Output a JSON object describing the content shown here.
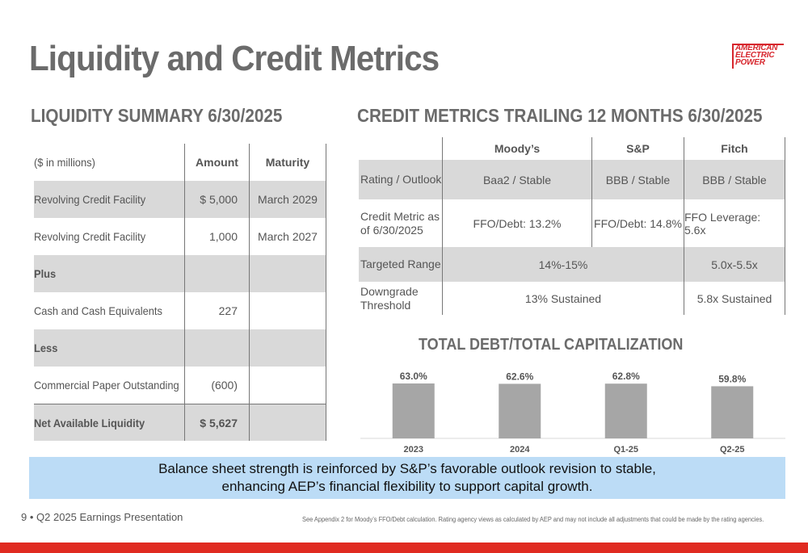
{
  "title": "Liquidity and Credit Metrics",
  "logo": {
    "text": [
      "AMERICAN",
      "ELECTRIC",
      "POWER"
    ],
    "color": "#d7262d"
  },
  "liquidity": {
    "title": "LIQUIDITY SUMMARY 6/30/2025",
    "header": {
      "label": "($ in millions)",
      "amount": "Amount",
      "maturity": "Maturity"
    },
    "rows": [
      {
        "label": "Revolving Credit Facility",
        "amount": "$ 5,000",
        "maturity": "March 2029"
      },
      {
        "label": "Revolving Credit Facility",
        "amount": "1,000",
        "maturity": "March 2027"
      },
      {
        "label": "Plus",
        "amount": "",
        "maturity": ""
      },
      {
        "label": "Cash and Cash Equivalents",
        "amount": "227",
        "maturity": ""
      },
      {
        "label": "Less",
        "amount": "",
        "maturity": ""
      },
      {
        "label": "Commercial Paper Outstanding",
        "amount": "(600)",
        "maturity": ""
      },
      {
        "label": "Net Available Liquidity",
        "amount": "$ 5,627",
        "maturity": ""
      }
    ]
  },
  "credit": {
    "title": "CREDIT METRICS TRAILING 12 MONTHS 6/30/2025",
    "header": {
      "moodys": "Moody’s",
      "sp": "S&P",
      "fitch": "Fitch"
    },
    "rating": {
      "label": "Rating / Outlook",
      "moodys": "Baa2 / Stable",
      "sp": "BBB / Stable",
      "fitch": "BBB / Stable"
    },
    "metric": {
      "label": "Credit Metric as of 6/30/2025",
      "moodys": "FFO/Debt: 13.2%",
      "sp": "FFO/Debt: 14.8%",
      "fitch": "FFO Leverage: 5.6x"
    },
    "targeted": {
      "label": "Targeted Range",
      "moodys_sp": "14%-15%",
      "fitch": "5.0x-5.5x"
    },
    "downgrade": {
      "label": "Downgrade Threshold",
      "moodys_sp": "13% Sustained",
      "fitch": "5.8x Sustained"
    }
  },
  "chart_title": "TOTAL DEBT/TOTAL CAPITALIZATION",
  "chart_data": {
    "type": "bar",
    "title": "TOTAL DEBT/TOTAL CAPITALIZATION",
    "categories": [
      "2023",
      "2024",
      "Q1-25",
      "Q2-25"
    ],
    "values": [
      63.0,
      62.6,
      62.8,
      59.8
    ],
    "labels": [
      "63.0%",
      "62.6%",
      "62.8%",
      "59.8%"
    ],
    "color": "#a6a6a6",
    "grid": false
  },
  "callout": {
    "line1": "Balance sheet strength is reinforced by S&P’s favorable outlook revision to stable,",
    "line2": "enhancing AEP’s financial flexibility to support capital growth.",
    "background": "#bcdcf6"
  },
  "footer": {
    "left": "9 • Q2 2025 Earnings Presentation",
    "right": "See Appendix 2 for Moody’s FFO/Debt calculation.  Rating agency views as calculated by AEP and may not include all adjustments that could be made by the rating agencies."
  },
  "accent": "#e02a20"
}
